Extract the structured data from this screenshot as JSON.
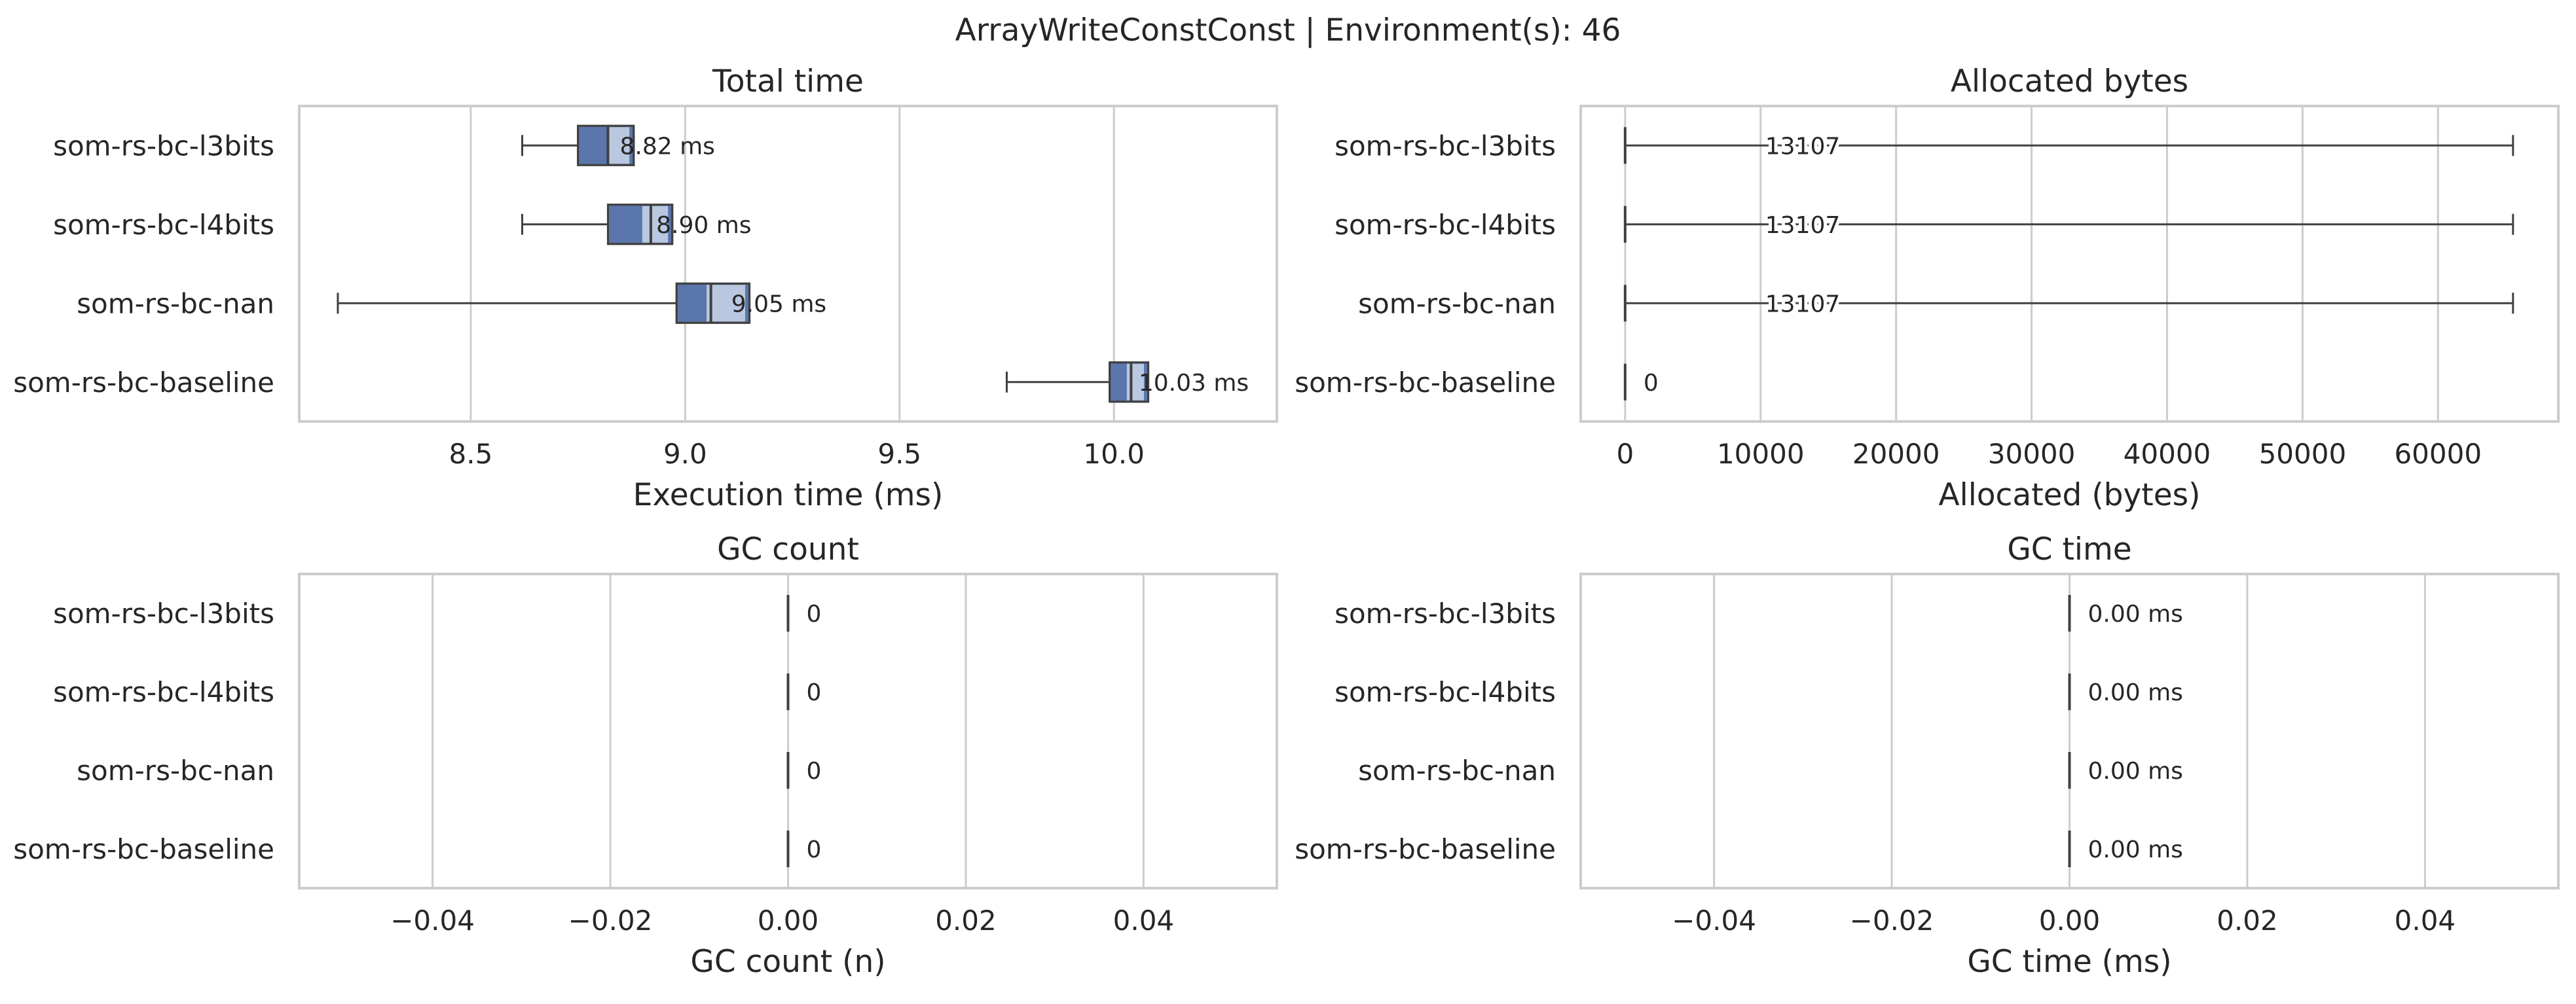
{
  "figure_title": "ArrayWriteConstConst | Environment(s): 46",
  "colors": {
    "box": "#5a76aa",
    "ci_band": "#b9c8e0",
    "line": "#404040",
    "grid": "#cccccc"
  },
  "chart_data": [
    {
      "type": "boxplot",
      "title": "Total time",
      "xlabel": "Execution time (ms)",
      "categories": [
        "som-rs-bc-l3bits",
        "som-rs-bc-l4bits",
        "som-rs-bc-nan",
        "som-rs-bc-baseline"
      ],
      "xlim": [
        8.1,
        10.38
      ],
      "xticks": [
        8.5,
        9.0,
        9.5,
        10.0
      ],
      "xtick_labels": [
        "8.5",
        "9.0",
        "9.5",
        "10.0"
      ],
      "grid": true,
      "boxes": [
        {
          "min": 8.62,
          "q1": 8.75,
          "median": 8.82,
          "q3": 8.88,
          "max": 8.88,
          "ci": [
            8.82,
            8.87
          ],
          "label": "8.82 ms"
        },
        {
          "min": 8.62,
          "q1": 8.82,
          "median": 8.92,
          "q3": 8.97,
          "max": 8.97,
          "ci": [
            8.9,
            8.96
          ],
          "label": "8.90 ms"
        },
        {
          "min": 8.19,
          "q1": 8.98,
          "median": 9.06,
          "q3": 9.15,
          "max": 9.15,
          "ci": [
            9.05,
            9.14
          ],
          "label": "9.05 ms"
        },
        {
          "min": 9.75,
          "q1": 9.99,
          "median": 10.04,
          "q3": 10.08,
          "max": 10.08,
          "ci": [
            10.03,
            10.07
          ],
          "label": "10.03 ms"
        }
      ]
    },
    {
      "type": "boxplot",
      "title": "Allocated bytes",
      "xlabel": "Allocated (bytes)",
      "categories": [
        "som-rs-bc-l3bits",
        "som-rs-bc-l4bits",
        "som-rs-bc-nan",
        "som-rs-bc-baseline"
      ],
      "xlim": [
        -3280,
        68880
      ],
      "xticks": [
        0,
        10000,
        20000,
        30000,
        40000,
        50000,
        60000
      ],
      "xtick_labels": [
        "0",
        "10000",
        "20000",
        "30000",
        "40000",
        "50000",
        "60000"
      ],
      "grid": true,
      "boxes": [
        {
          "min": 0,
          "q1": 0,
          "median": 0,
          "q3": 0,
          "max": 65536,
          "label": "13107"
        },
        {
          "min": 0,
          "q1": 0,
          "median": 0,
          "q3": 0,
          "max": 65536,
          "label": "13107"
        },
        {
          "min": 0,
          "q1": 0,
          "median": 0,
          "q3": 0,
          "max": 65536,
          "label": "13107"
        },
        {
          "min": 0,
          "q1": 0,
          "median": 0,
          "q3": 0,
          "max": 0,
          "label": "0"
        }
      ]
    },
    {
      "type": "boxplot",
      "title": "GC count",
      "xlabel": "GC count (n)",
      "categories": [
        "som-rs-bc-l3bits",
        "som-rs-bc-l4bits",
        "som-rs-bc-nan",
        "som-rs-bc-baseline"
      ],
      "xlim": [
        -0.055,
        0.055
      ],
      "xticks": [
        -0.04,
        -0.02,
        0.0,
        0.02,
        0.04
      ],
      "xtick_labels": [
        "−0.04",
        "−0.02",
        "0.00",
        "0.02",
        "0.04"
      ],
      "grid": true,
      "boxes": [
        {
          "min": 0,
          "q1": 0,
          "median": 0,
          "q3": 0,
          "max": 0,
          "label": "0"
        },
        {
          "min": 0,
          "q1": 0,
          "median": 0,
          "q3": 0,
          "max": 0,
          "label": "0"
        },
        {
          "min": 0,
          "q1": 0,
          "median": 0,
          "q3": 0,
          "max": 0,
          "label": "0"
        },
        {
          "min": 0,
          "q1": 0,
          "median": 0,
          "q3": 0,
          "max": 0,
          "label": "0"
        }
      ]
    },
    {
      "type": "boxplot",
      "title": "GC time",
      "xlabel": "GC time (ms)",
      "categories": [
        "som-rs-bc-l3bits",
        "som-rs-bc-l4bits",
        "som-rs-bc-nan",
        "som-rs-bc-baseline"
      ],
      "xlim": [
        -0.055,
        0.055
      ],
      "xticks": [
        -0.04,
        -0.02,
        0.0,
        0.02,
        0.04
      ],
      "xtick_labels": [
        "−0.04",
        "−0.02",
        "0.00",
        "0.02",
        "0.04"
      ],
      "grid": true,
      "boxes": [
        {
          "min": 0,
          "q1": 0,
          "median": 0,
          "q3": 0,
          "max": 0,
          "label": "0.00 ms"
        },
        {
          "min": 0,
          "q1": 0,
          "median": 0,
          "q3": 0,
          "max": 0,
          "label": "0.00 ms"
        },
        {
          "min": 0,
          "q1": 0,
          "median": 0,
          "q3": 0,
          "max": 0,
          "label": "0.00 ms"
        },
        {
          "min": 0,
          "q1": 0,
          "median": 0,
          "q3": 0,
          "max": 0,
          "label": "0.00 ms"
        }
      ]
    }
  ]
}
